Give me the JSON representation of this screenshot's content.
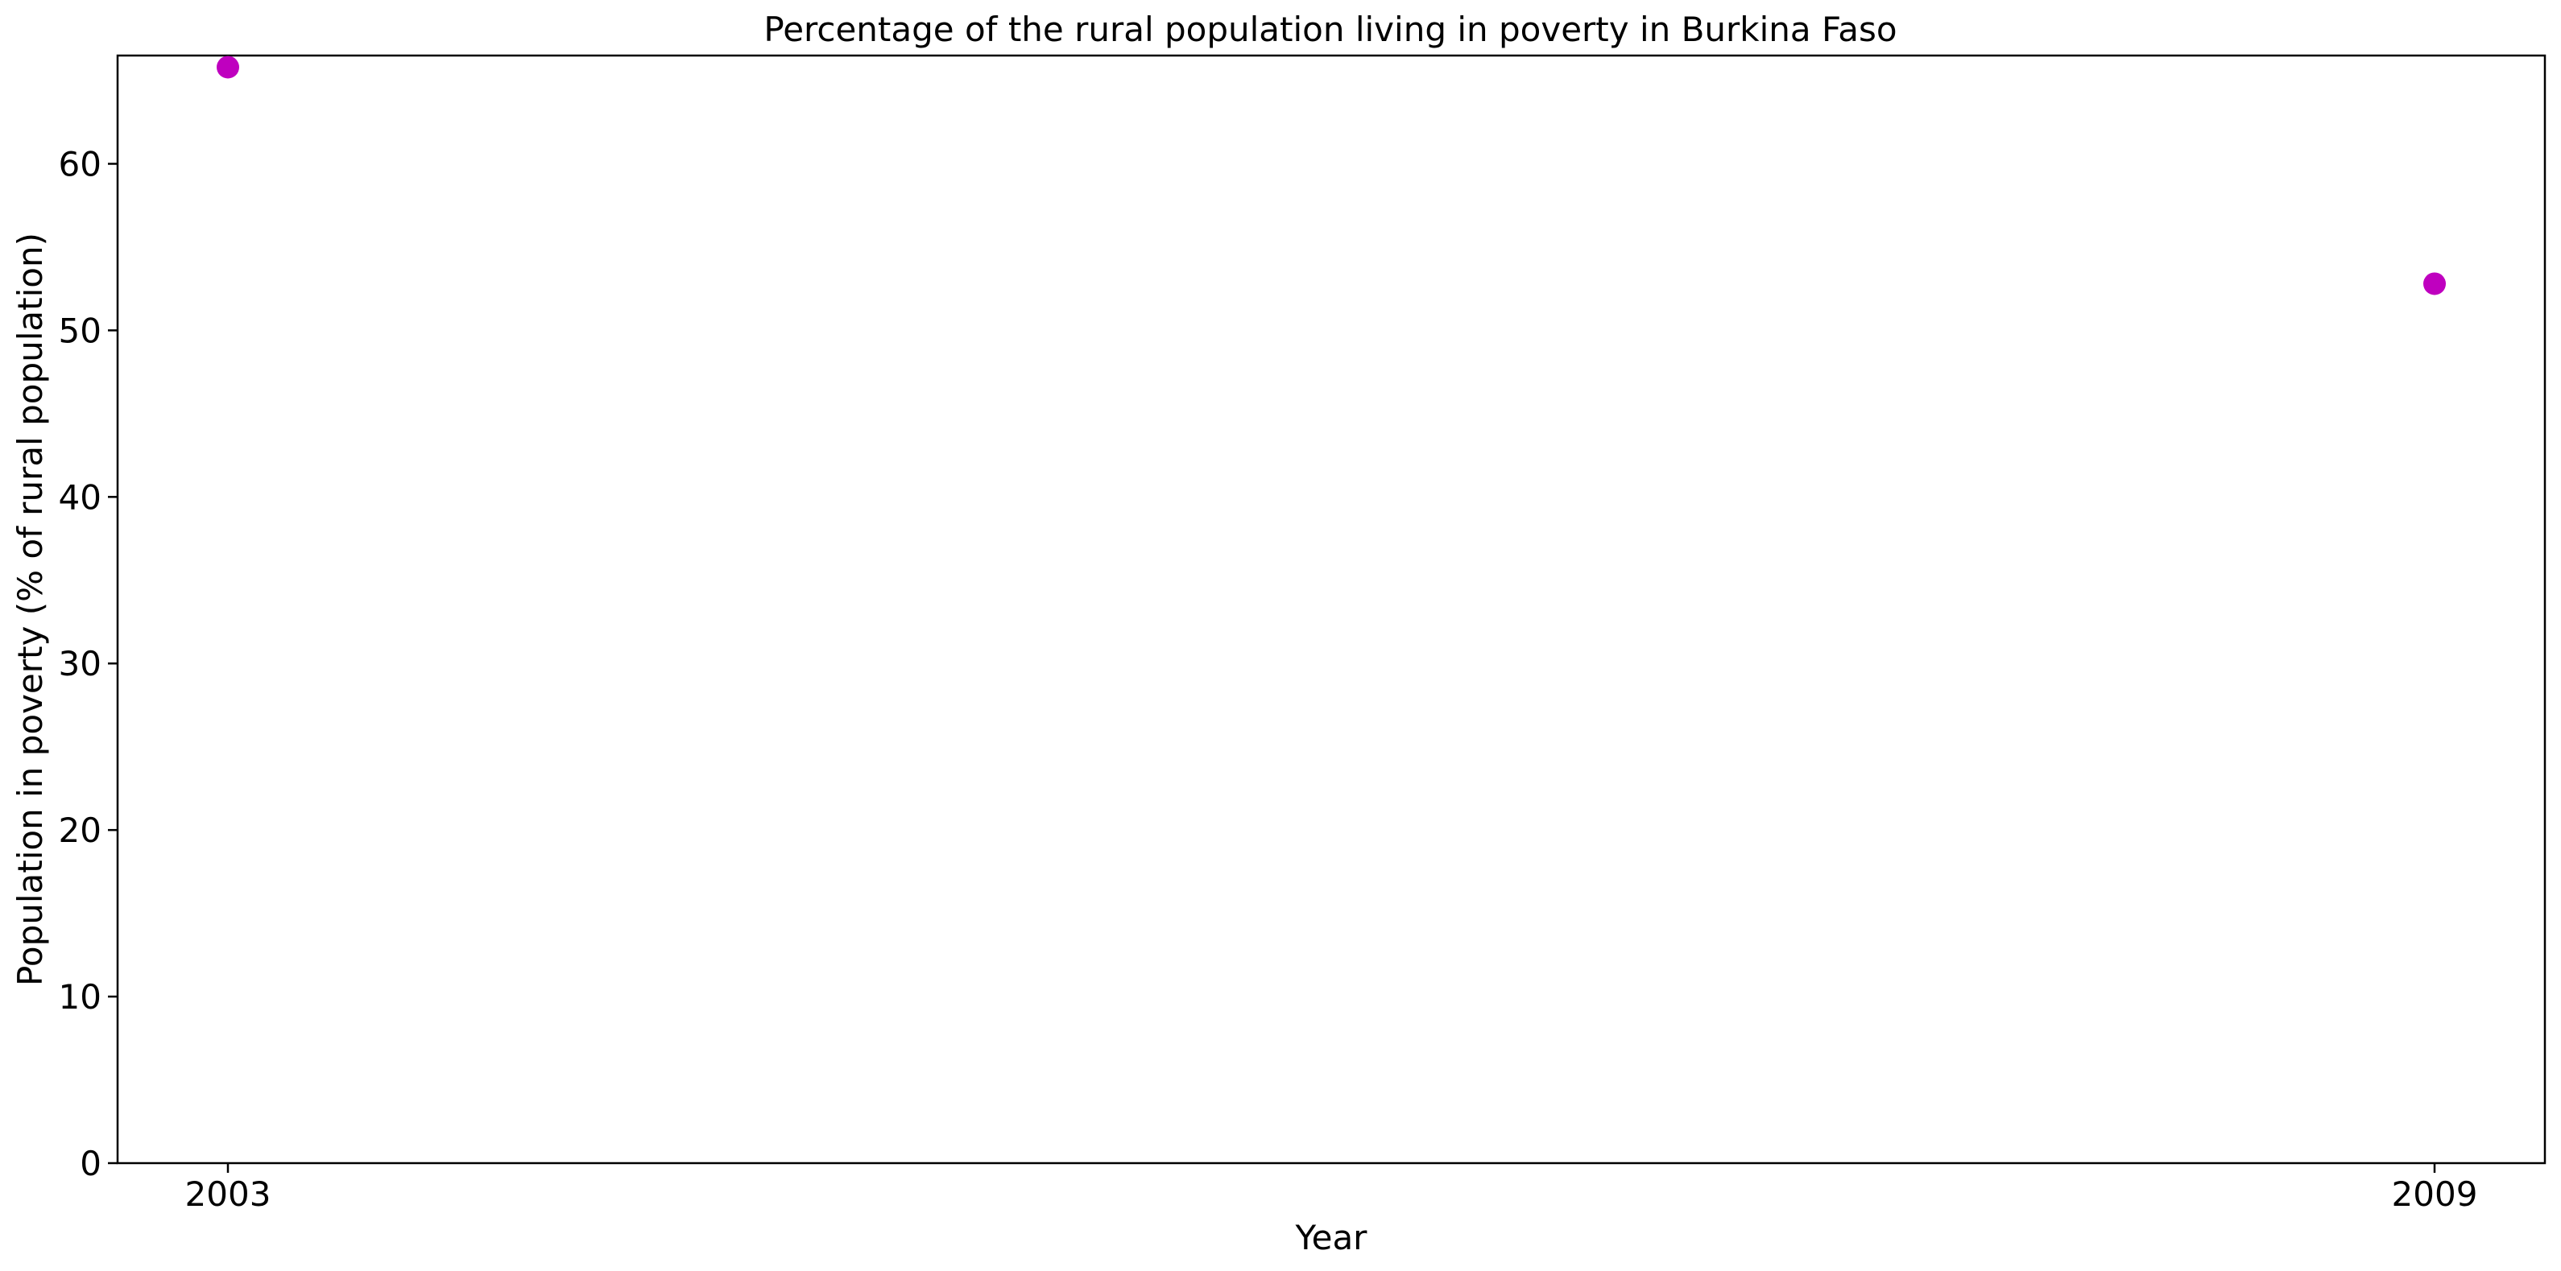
{
  "chart_data": {
    "type": "scatter",
    "title": "Percentage of the rural population living in poverty in Burkina Faso",
    "xlabel": "Year",
    "ylabel": "Population in poverty (% of rural population)",
    "x": [
      2003,
      2009
    ],
    "series": [
      {
        "values": [
          65.8,
          52.8
        ],
        "color": "#bf00bf"
      }
    ],
    "x_ticks": [
      "2003",
      "2009"
    ],
    "y_ticks": [
      0,
      10,
      20,
      30,
      40,
      50,
      60
    ],
    "xlim": [
      2002.7,
      2009.3
    ],
    "ylim": [
      0,
      66.5
    ],
    "grid": false,
    "legend": "none"
  }
}
